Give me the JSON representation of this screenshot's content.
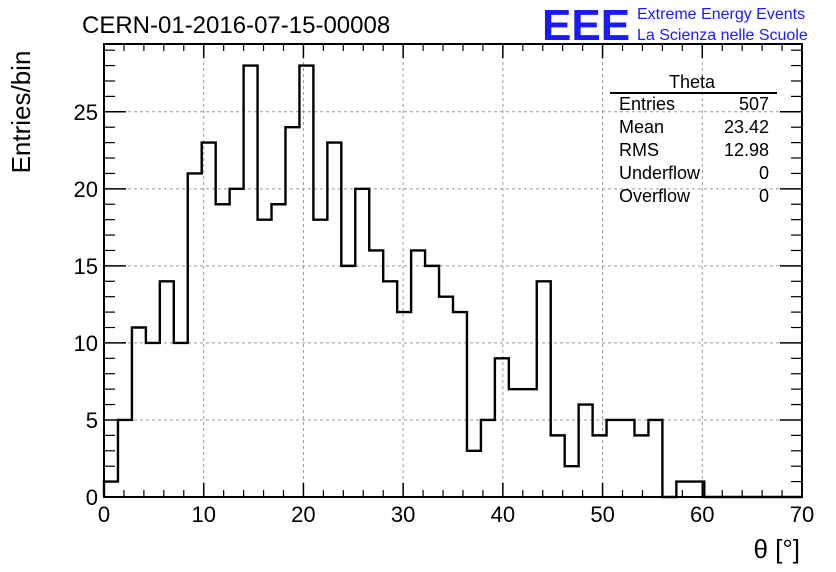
{
  "chart_data": {
    "type": "bar",
    "title": "CERN-01-2016-07-15-00008",
    "xlabel": "θ [°]",
    "ylabel": "Entries/bin",
    "xlim": [
      0,
      70
    ],
    "ylim": [
      0,
      29.4
    ],
    "bin_width": 1.4,
    "x_start": 0,
    "values": [
      1,
      5,
      11,
      10,
      14,
      10,
      21,
      23,
      19,
      20,
      28,
      18,
      19,
      24,
      28,
      18,
      23,
      15,
      20,
      16,
      14,
      12,
      16,
      15,
      13,
      12,
      3,
      5,
      9,
      7,
      7,
      14,
      4,
      2,
      6,
      4,
      5,
      5,
      4,
      5,
      0,
      1,
      1,
      0,
      0,
      0,
      0,
      0,
      0,
      0
    ],
    "xticks": [
      0,
      10,
      20,
      30,
      40,
      50,
      60,
      70
    ],
    "yticks": [
      0,
      5,
      10,
      15,
      20,
      25
    ],
    "grid": true,
    "stats": {
      "name": "Theta",
      "rows": [
        {
          "label": "Entries",
          "value": "507"
        },
        {
          "label": "Mean",
          "value": "23.42"
        },
        {
          "label": "RMS",
          "value": "12.98"
        },
        {
          "label": "Underflow",
          "value": "0"
        },
        {
          "label": "Overflow",
          "value": "0"
        }
      ]
    }
  },
  "logo": {
    "mark": "EEE",
    "line1": "Extreme Energy Events",
    "line2": "La Scienza nelle Scuole",
    "color": "#1a1aff"
  }
}
